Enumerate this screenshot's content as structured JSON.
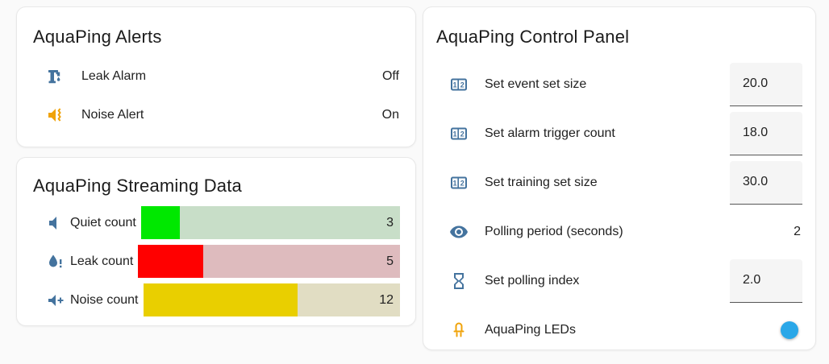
{
  "page": {
    "background": "#fafafa"
  },
  "colors": {
    "icon_blue": "#44739e",
    "icon_amber": "#f0a30a",
    "text": "#212121",
    "card_bg": "#ffffff"
  },
  "alerts_card": {
    "title": "AquaPing Alerts",
    "rows": [
      {
        "icon": "water-pump",
        "icon_color": "#44739e",
        "label": "Leak Alarm",
        "value": "Off"
      },
      {
        "icon": "volume-vibrate",
        "icon_color": "#f0a30a",
        "label": "Noise Alert",
        "value": "On"
      }
    ]
  },
  "chart_data": {
    "type": "bar",
    "orientation": "horizontal",
    "title": "AquaPing Streaming Data",
    "categories": [
      "Quiet count",
      "Leak count",
      "Noise count"
    ],
    "values": [
      3,
      5,
      12
    ],
    "max": 20,
    "percents": [
      15,
      25,
      60
    ],
    "fill_colors": [
      "#00e800",
      "#ff0000",
      "#e9cf00"
    ],
    "track_colors": [
      "#c8dec8",
      "#debbbe",
      "#e1ddc3"
    ],
    "icons": [
      "volume-mute",
      "water-alert",
      "volume-plus"
    ],
    "icon_color": "#44739e",
    "value_labels_inside": true,
    "grid": false,
    "legend": false
  },
  "control_card": {
    "title": "AquaPing Control Panel",
    "rows": [
      {
        "icon": "counter",
        "icon_color": "#44739e",
        "label": "Set event set size",
        "value": "20.0",
        "control": "number-input"
      },
      {
        "icon": "counter",
        "icon_color": "#44739e",
        "label": "Set alarm trigger count",
        "value": "18.0",
        "control": "number-input"
      },
      {
        "icon": "counter",
        "icon_color": "#44739e",
        "label": "Set training set size",
        "value": "30.0",
        "control": "number-input"
      },
      {
        "icon": "eye",
        "icon_color": "#44739e",
        "label": "Polling period (seconds)",
        "value": "2",
        "control": "text"
      },
      {
        "icon": "timer-sand",
        "icon_color": "#44739e",
        "label": "Set polling index",
        "value": "2.0",
        "control": "number-input"
      },
      {
        "icon": "led",
        "icon_color": "#f0a30a",
        "label": "AquaPing LEDs",
        "value": "on",
        "control": "toggle"
      }
    ],
    "toggle": {
      "state": "on",
      "track_color": "#9fd3f0",
      "thumb_color": "#2aa7e8"
    }
  }
}
